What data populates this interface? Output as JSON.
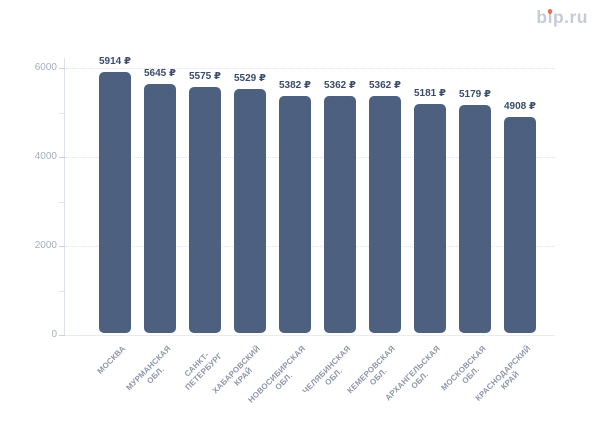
{
  "page": {
    "background": "#ffffff"
  },
  "logo": {
    "text": "bip.ru",
    "color": "#c6cad9",
    "dot_color": "#f26b4f"
  },
  "chart_data": {
    "type": "bar",
    "title": "",
    "xlabel": "",
    "ylabel": "",
    "categories": [
      "МОСКВА",
      "МУРМАНСКАЯ\nОБЛ.",
      "САНКТ-\nПЕТЕРБУРГ",
      "ХАБАРОВСКИЙ\nКРАЙ",
      "НОВОСИБИРСКАЯ\nОБЛ.",
      "ЧЕЛЯБИНСКАЯ\nОБЛ.",
      "КЕМЕРОВСКАЯ\nОБЛ.",
      "АРХАНГЕЛЬСКАЯ\nОБЛ.",
      "МОСКОВСКАЯ\nОБЛ.",
      "КРАСНОДАРСКИЙ\nКРАЙ"
    ],
    "values": [
      5914,
      5645,
      5575,
      5529,
      5382,
      5362,
      5362,
      5181,
      5179,
      4908
    ],
    "value_suffix": "₽",
    "value_labels": [
      "5914 ₽",
      "5645 ₽",
      "5575 ₽",
      "5529 ₽",
      "5382 ₽",
      "5362 ₽",
      "5362 ₽",
      "5181 ₽",
      "5179 ₽",
      "4908 ₽"
    ],
    "ylim": [
      0,
      6000
    ],
    "yticks_major": [
      0,
      2000,
      4000,
      6000
    ],
    "yticks_minor": [
      1000,
      3000,
      5000
    ],
    "grid": "dotted horizontal at major ticks",
    "legend": "none",
    "bar_color": "#4d6080",
    "value_label_color": "#3b4c6b",
    "xtick_label_color": "#8f96a8",
    "ytick_label_color": "#a7aebf"
  }
}
